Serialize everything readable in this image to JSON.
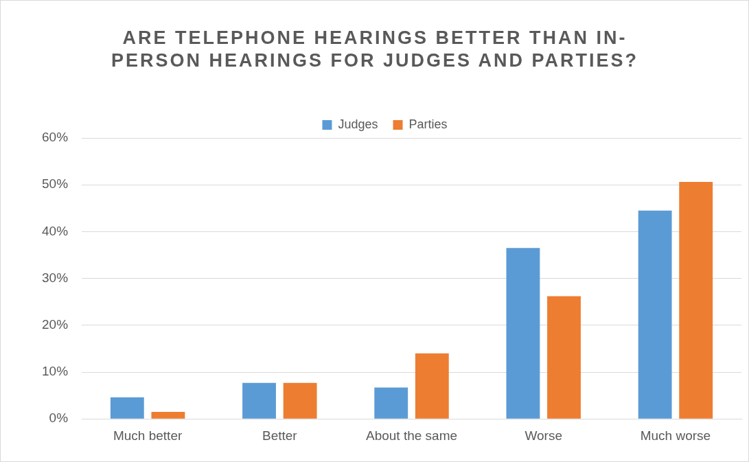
{
  "chart_data": {
    "type": "bar",
    "title": "ARE TELEPHONE HEARINGS BETTER THAN IN-PERSON HEARINGS FOR JUDGES AND PARTIES?",
    "categories": [
      "Much better",
      "Better",
      "About the same",
      "Worse",
      "Much worse"
    ],
    "series": [
      {
        "name": "Judges",
        "color": "#5b9bd5",
        "values": [
          4.6,
          7.7,
          6.7,
          36.5,
          44.5
        ]
      },
      {
        "name": "Parties",
        "color": "#ed7d31",
        "values": [
          1.5,
          7.7,
          14.0,
          26.2,
          50.6
        ]
      }
    ],
    "ylim": [
      0,
      60
    ],
    "yticks": [
      {
        "value": 0,
        "label": "0%"
      },
      {
        "value": 10,
        "label": "10%"
      },
      {
        "value": 20,
        "label": "20%"
      },
      {
        "value": 30,
        "label": "30%"
      },
      {
        "value": 40,
        "label": "40%"
      },
      {
        "value": 50,
        "label": "50%"
      },
      {
        "value": 60,
        "label": "60%"
      }
    ],
    "grid": "y",
    "legend": "top"
  }
}
